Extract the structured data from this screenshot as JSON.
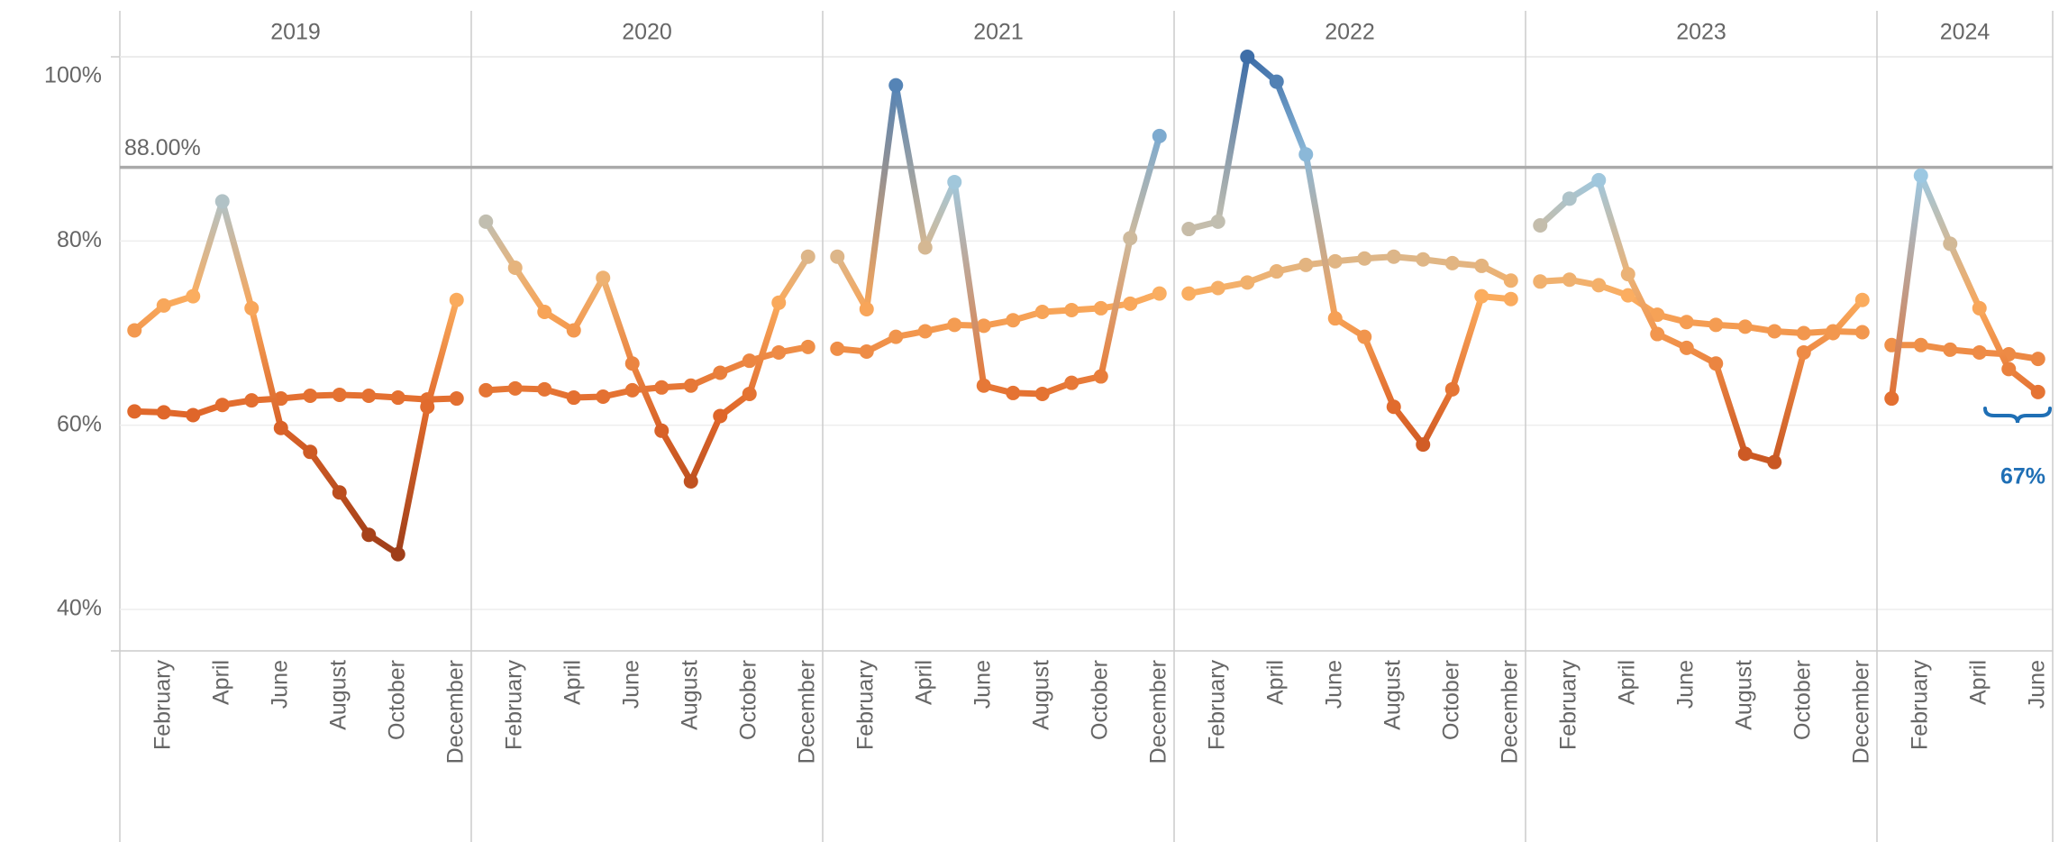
{
  "chart_data": {
    "type": "line",
    "ylim": [
      35.5,
      100
    ],
    "yticks": [
      {
        "value": 40,
        "label": "40%"
      },
      {
        "value": 60,
        "label": "60%"
      },
      {
        "value": 80,
        "label": "80%"
      },
      {
        "value": 100,
        "label": "100%"
      }
    ],
    "grid": true,
    "color_scale": [
      "#7a2e12",
      "#a8421a",
      "#e0672a",
      "#fbae60",
      "#9cc8e2",
      "#3e6ea8"
    ],
    "reference_line": {
      "value": 88,
      "label": "88.00%"
    },
    "annotation": {
      "text": "67%"
    },
    "panels": [
      {
        "title": "2019",
        "categories": [
          null,
          "February",
          null,
          "April",
          null,
          "June",
          null,
          "August",
          null,
          "October",
          null,
          "December"
        ],
        "series": [
          {
            "values": [
              61.5,
              61.4,
              61.1,
              62.2,
              62.7,
              62.9,
              63.2,
              63.3,
              63.2,
              63.0,
              62.8,
              62.9
            ]
          },
          {
            "values": [
              70.3,
              73.0,
              74.0,
              84.3,
              72.7,
              59.7,
              57.1,
              52.7,
              48.1,
              46.0,
              62.0,
              73.6
            ]
          }
        ]
      },
      {
        "title": "2020",
        "categories": [
          null,
          "February",
          null,
          "April",
          null,
          "June",
          null,
          "August",
          null,
          "October",
          null,
          "December"
        ],
        "series": [
          {
            "values": [
              63.8,
              64.0,
              63.9,
              63.0,
              63.1,
              63.8,
              64.1,
              64.3,
              65.7,
              67.0,
              67.9,
              68.5
            ]
          },
          {
            "values": [
              82.1,
              77.1,
              72.3,
              70.3,
              76.0,
              66.7,
              59.4,
              53.9,
              61.0,
              63.4,
              73.3,
              78.3
            ]
          }
        ]
      },
      {
        "title": "2021",
        "categories": [
          null,
          "February",
          null,
          "April",
          null,
          "June",
          null,
          "August",
          null,
          "October",
          null,
          "December"
        ],
        "series": [
          {
            "values": [
              68.3,
              68.0,
              69.6,
              70.2,
              70.9,
              70.8,
              71.4,
              72.3,
              72.5,
              72.7,
              73.2,
              74.3
            ]
          },
          {
            "values": [
              78.3,
              72.6,
              96.9,
              79.3,
              86.4,
              64.3,
              63.5,
              63.4,
              64.6,
              65.3,
              80.3,
              91.4
            ]
          }
        ]
      },
      {
        "title": "2022",
        "categories": [
          null,
          "February",
          null,
          "April",
          null,
          "June",
          null,
          "August",
          null,
          "October",
          null,
          "December"
        ],
        "series": [
          {
            "values": [
              74.3,
              74.9,
              75.5,
              76.7,
              77.4,
              77.8,
              78.1,
              78.3,
              78.0,
              77.6,
              77.3,
              75.7
            ]
          },
          {
            "values": [
              81.3,
              82.1,
              100.0,
              97.3,
              89.4,
              71.6,
              69.6,
              62.0,
              57.9,
              63.9,
              74.0,
              73.7
            ]
          }
        ]
      },
      {
        "title": "2023",
        "categories": [
          null,
          "February",
          null,
          "April",
          null,
          "June",
          null,
          "August",
          null,
          "October",
          null,
          "December"
        ],
        "series": [
          {
            "values": [
              75.6,
              75.8,
              75.2,
              74.1,
              72.0,
              71.2,
              70.9,
              70.7,
              70.2,
              70.0,
              70.2,
              70.1
            ]
          },
          {
            "values": [
              81.7,
              84.6,
              86.6,
              76.4,
              69.9,
              68.4,
              66.7,
              56.9,
              56.0,
              67.9,
              70.0,
              73.6
            ]
          }
        ]
      },
      {
        "title": "2024",
        "categories": [
          null,
          "February",
          null,
          "April",
          null,
          "June"
        ],
        "series": [
          {
            "values": [
              68.7,
              68.7,
              68.2,
              67.9,
              67.7,
              67.2
            ]
          },
          {
            "values": [
              62.9,
              87.1,
              79.7,
              72.7,
              66.1,
              63.6
            ]
          }
        ]
      }
    ]
  }
}
